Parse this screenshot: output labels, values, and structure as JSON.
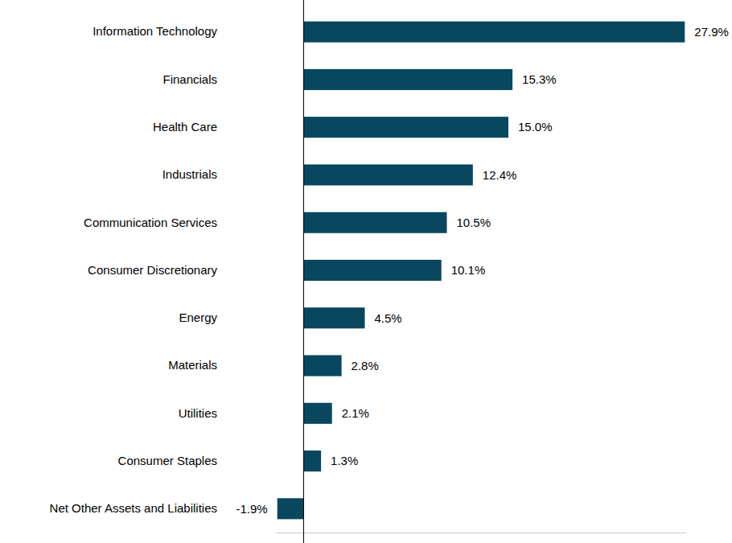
{
  "chart_data": {
    "type": "bar",
    "orientation": "horizontal",
    "categories": [
      "Information Technology",
      "Financials",
      "Health Care",
      "Industrials",
      "Communication Services",
      "Consumer Discretionary",
      "Energy",
      "Materials",
      "Utilities",
      "Consumer Staples",
      "Net Other Assets and Liabilities"
    ],
    "values": [
      27.9,
      15.3,
      15.0,
      12.4,
      10.5,
      10.1,
      4.5,
      2.8,
      2.1,
      1.3,
      -1.9
    ],
    "value_labels": [
      "27.9%",
      "15.3%",
      "15.0%",
      "12.4%",
      "10.5%",
      "10.1%",
      "4.5%",
      "2.8%",
      "2.1%",
      "1.3%",
      "-1.9%"
    ],
    "color": "#08475e",
    "xlim": [
      -2,
      28
    ],
    "xticks": [
      0
    ],
    "tick_labels": false,
    "data_labels": true
  }
}
